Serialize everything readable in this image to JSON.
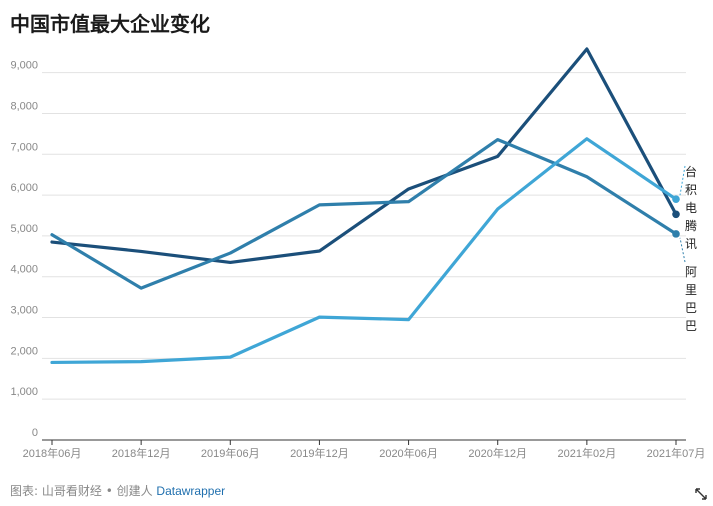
{
  "title": "中国市值最大企业变化",
  "footer": {
    "source_label": "图表:",
    "author": "山哥看财经 • 创建人",
    "tool_link": "Datawrapper"
  },
  "chart_data": {
    "type": "line",
    "title": "中国市值最大企业变化",
    "xlabel": "",
    "ylabel": "",
    "x": [
      "2018年06月",
      "2018年12月",
      "2019年06月",
      "2019年12月",
      "2020年06月",
      "2020年12月",
      "2021年02月",
      "2021年07月"
    ],
    "yticks": [
      0,
      1000,
      2000,
      3000,
      4000,
      5000,
      6000,
      7000,
      8000,
      9000
    ],
    "ytick_labels": [
      "0",
      "1,000",
      "2,000",
      "3,000",
      "4,000",
      "5,000",
      "6,000",
      "7,000",
      "8,000",
      "9,000"
    ],
    "ylim": [
      0,
      9800
    ],
    "grid": true,
    "series": [
      {
        "name": "",
        "color": "#1b4f7a",
        "values": [
          4850,
          4620,
          4350,
          4630,
          6150,
          6950,
          9580,
          5530
        ]
      },
      {
        "name": "阿里巴巴",
        "color": "#2f7fab",
        "values": [
          5030,
          3720,
          4580,
          5760,
          5840,
          7360,
          6450,
          5050
        ]
      },
      {
        "name": "台积电腾讯",
        "color": "#3fa6d6",
        "values": [
          1900,
          1920,
          2030,
          3010,
          2950,
          5660,
          7380,
          5900
        ]
      }
    ],
    "annotations": [
      {
        "text": "台积电腾讯",
        "series": 2
      },
      {
        "text": "阿里巴巴",
        "series": 1
      }
    ]
  }
}
